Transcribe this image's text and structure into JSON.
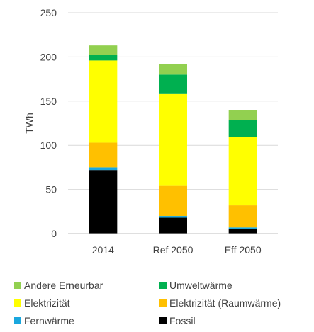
{
  "chart_data": {
    "type": "bar",
    "stacked": true,
    "title": "",
    "xlabel": "",
    "ylabel": "TWh",
    "ylim": [
      0,
      250
    ],
    "yticks": [
      0,
      50,
      100,
      150,
      200,
      250
    ],
    "grid": true,
    "legend_position": "bottom",
    "categories": [
      "2014",
      "Ref 2050",
      "Eff 2050"
    ],
    "series": [
      {
        "name": "Fossil",
        "color": "#000000",
        "values": [
          72,
          18,
          5
        ]
      },
      {
        "name": "Fernwärme",
        "color": "#1aa7de",
        "values": [
          3,
          2,
          2
        ]
      },
      {
        "name": "Elektrizität (Raumwärme)",
        "color": "#ffc000",
        "values": [
          28,
          34,
          25
        ]
      },
      {
        "name": "Elektrizität",
        "color": "#ffff00",
        "values": [
          93,
          104,
          77
        ]
      },
      {
        "name": "Umweltwärme",
        "color": "#00b050",
        "values": [
          6,
          22,
          20
        ]
      },
      {
        "name": "Andere Erneurbar",
        "color": "#92d050",
        "values": [
          11,
          12,
          11
        ]
      }
    ],
    "legend_order": [
      "Andere Erneurbar",
      "Umweltwärme",
      "Elektrizität",
      "Elektrizität (Raumwärme)",
      "Fernwärme",
      "Fossil"
    ]
  }
}
